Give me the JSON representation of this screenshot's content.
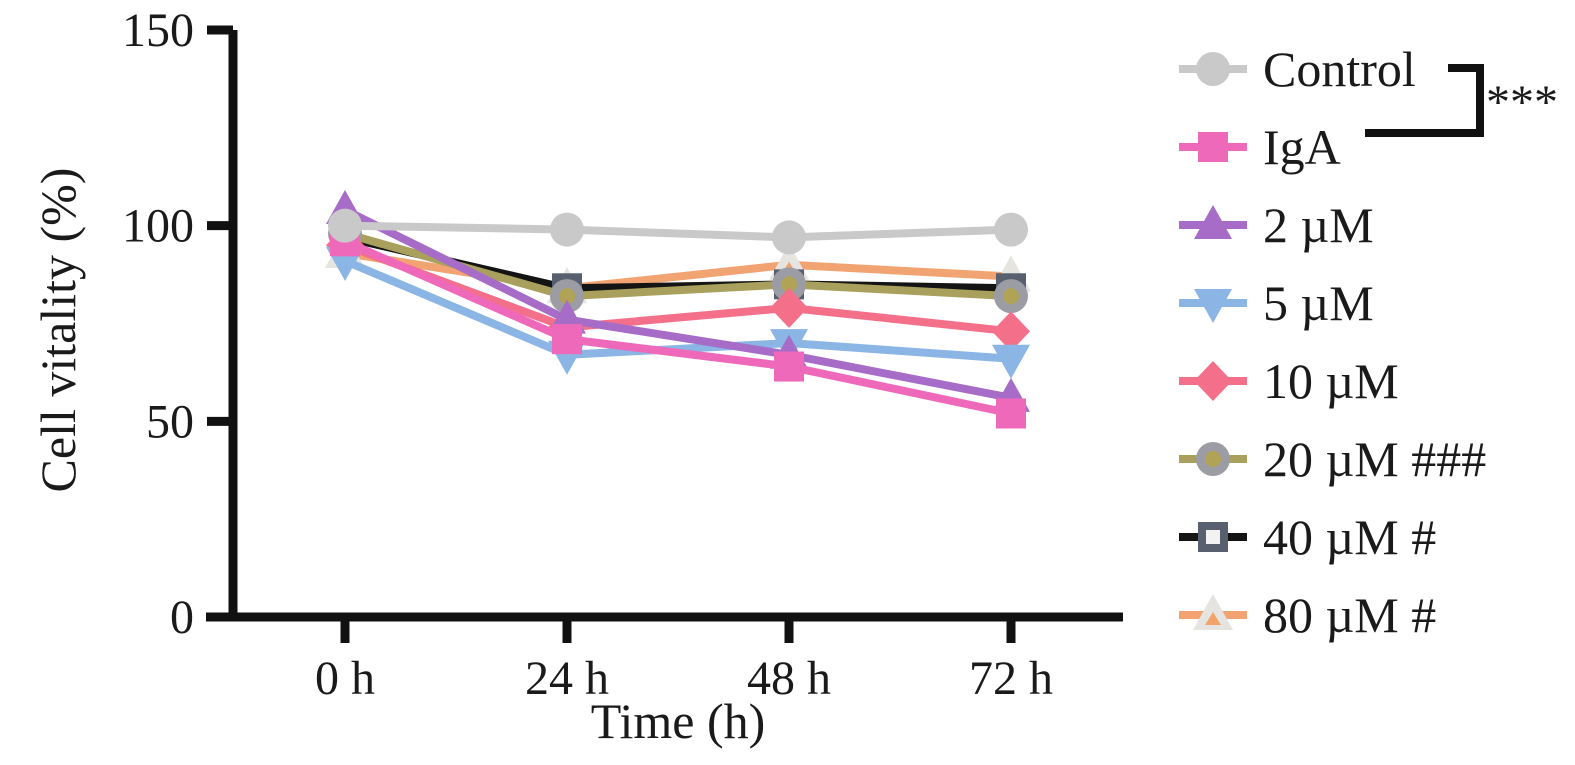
{
  "figure_background": "#ffffff",
  "text_color": "#1a1a1a",
  "axis_color": "#111111",
  "chart_data": {
    "type": "line",
    "title": "",
    "xlabel": "Time (h)",
    "ylabel": "Cell vitality (%)",
    "categories": [
      "0 h",
      "24 h",
      "48 h",
      "72 h"
    ],
    "ylim": [
      0,
      150
    ],
    "y_ticks": [
      0,
      50,
      100,
      150
    ],
    "y_tick_labels": [
      "0",
      "50",
      "100",
      "150"
    ],
    "grid": false,
    "legend_position": "right",
    "series": [
      {
        "name": "Control",
        "values": [
          100,
          99,
          97,
          99
        ],
        "color": "#c9c9c9",
        "marker": "circle",
        "marker_fill": "#c9c9c9",
        "marker_inner": null
      },
      {
        "name": "IgA",
        "values": [
          96,
          71,
          64,
          52
        ],
        "color": "#ef69bb",
        "marker": "square",
        "marker_fill": "#ef69bb",
        "marker_inner": null
      },
      {
        "name": "2 µM",
        "values": [
          104,
          76,
          67,
          56
        ],
        "color": "#a76cc8",
        "marker": "triangle-up",
        "marker_fill": "#a76cc8",
        "marker_inner": null
      },
      {
        "name": "5 µM",
        "values": [
          91,
          67,
          70,
          66
        ],
        "color": "#8ab5e5",
        "marker": "triangle-down",
        "marker_fill": "#8ab5e5",
        "marker_inner": null
      },
      {
        "name": "10 µM",
        "values": [
          95,
          74,
          79,
          73
        ],
        "color": "#f4708a",
        "marker": "diamond",
        "marker_fill": "#f4708a",
        "marker_inner": null
      },
      {
        "name": "20 µM ###",
        "values": [
          98,
          82,
          85,
          82
        ],
        "color": "#a8a05c",
        "marker": "circle-dot",
        "marker_fill": "#9c9ca4",
        "marker_inner": "#b0a355"
      },
      {
        "name": "40 µM #",
        "values": [
          97,
          84,
          85,
          84
        ],
        "color": "#141414",
        "marker": "square-open",
        "marker_fill": "#586070",
        "marker_inner": "#f2f2f2"
      },
      {
        "name": "80 µM #",
        "values": [
          93,
          84,
          90,
          87
        ],
        "color": "#f1a471",
        "marker": "triangle-open",
        "marker_fill": "#e6e4e0",
        "marker_inner": "#f0a46c"
      }
    ]
  },
  "annotations": {
    "comparison": {
      "from": "Control",
      "to": "IgA",
      "stars": "***"
    }
  }
}
